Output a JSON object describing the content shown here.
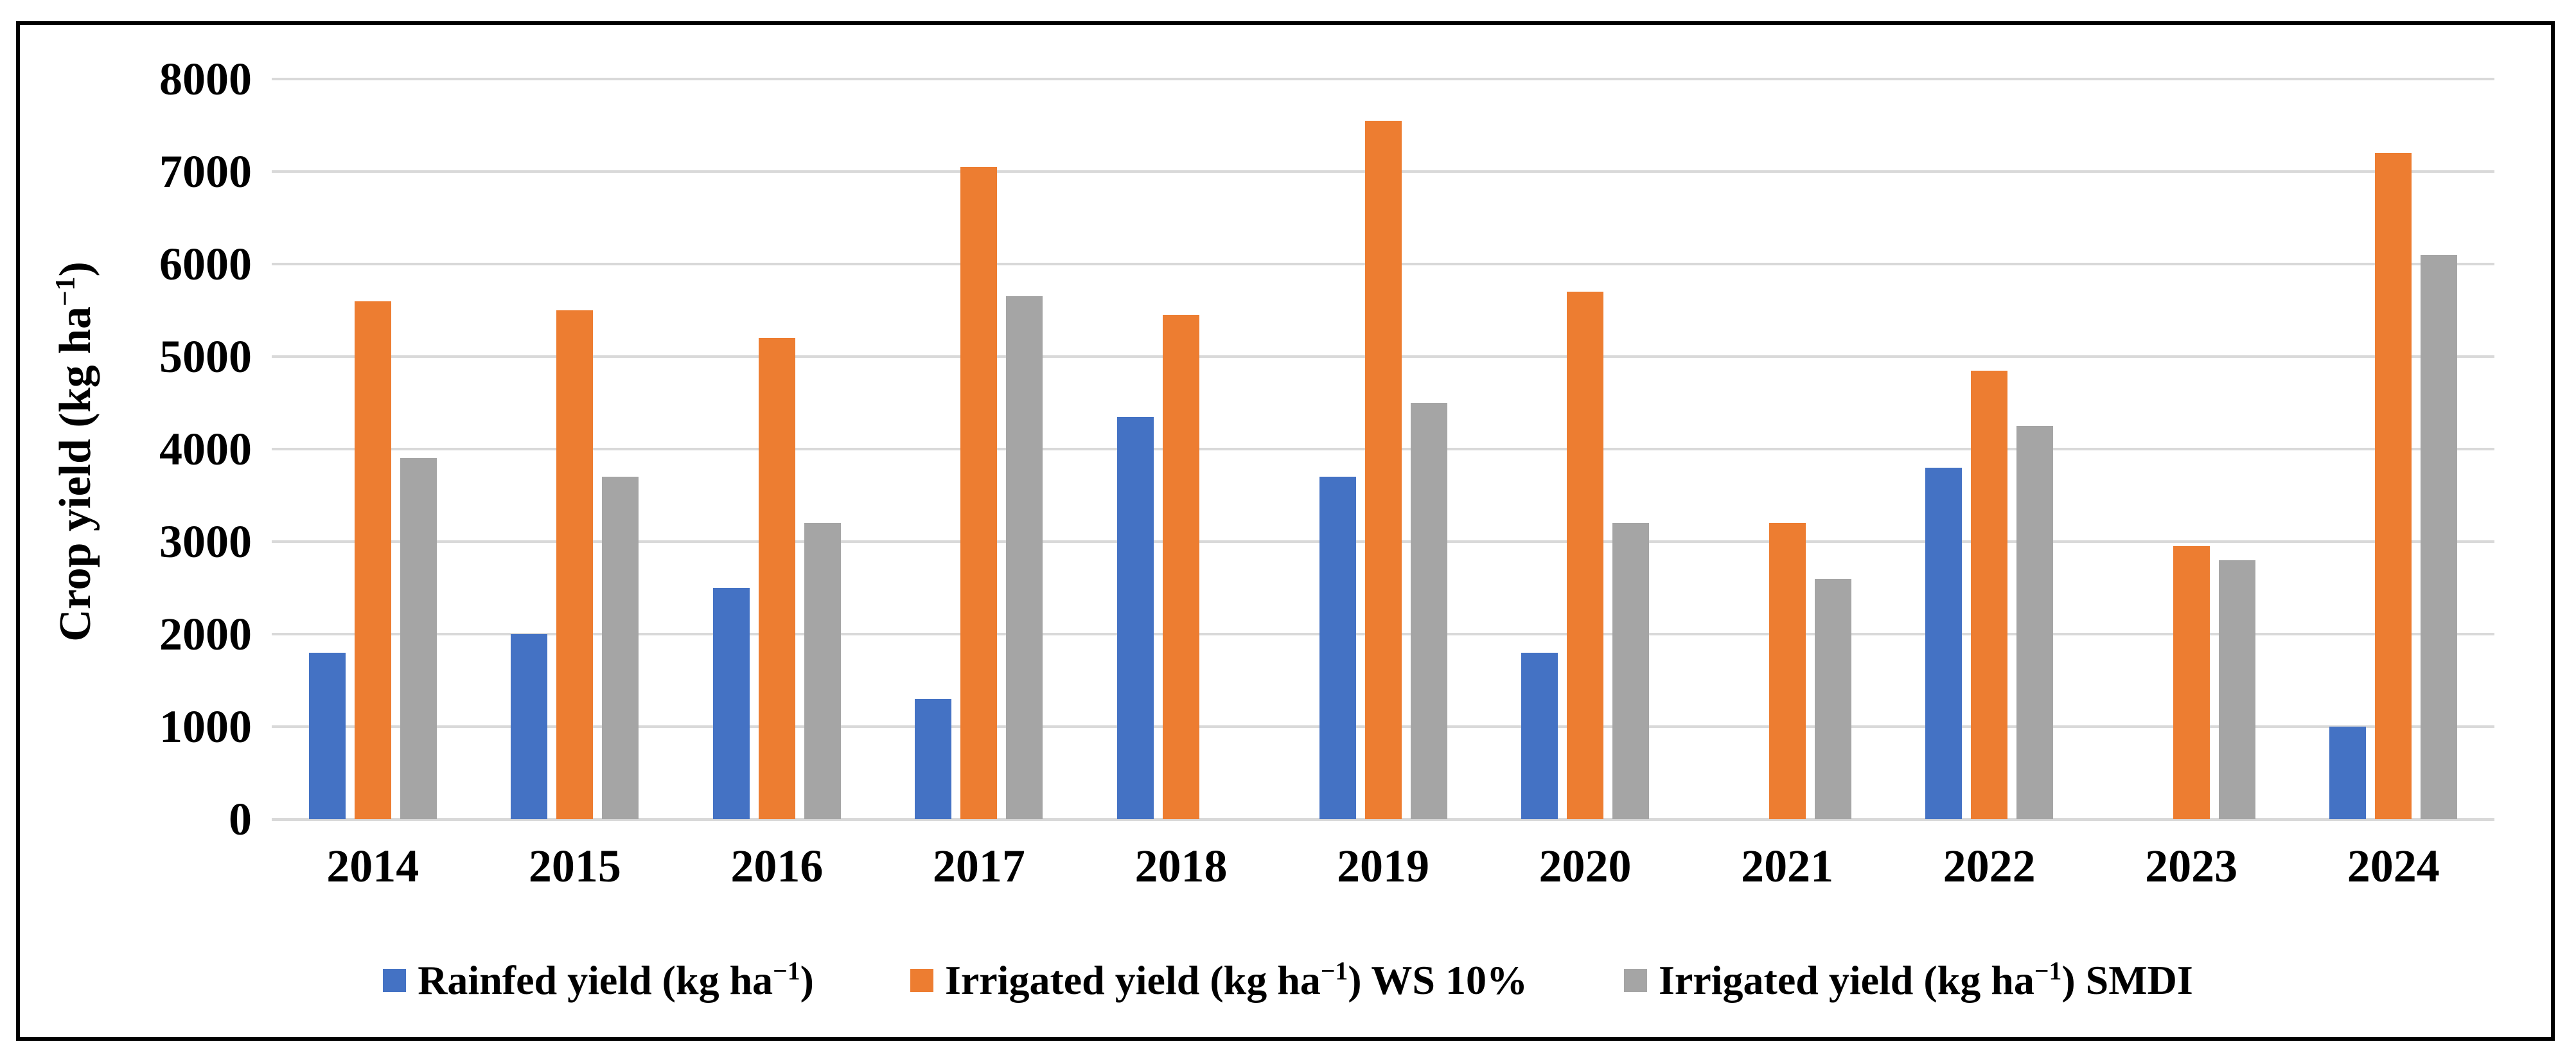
{
  "chart_data": {
    "type": "bar",
    "title": "",
    "categories": [
      "2014",
      "2015",
      "2016",
      "2017",
      "2018",
      "2019",
      "2020",
      "2021",
      "2022",
      "2023",
      "2024"
    ],
    "series": [
      {
        "name": "Rainfed yield (kg ha⁻¹)",
        "color": "#4472C4",
        "values": [
          1800,
          2000,
          2500,
          1300,
          4350,
          3700,
          1800,
          null,
          3800,
          null,
          1000
        ]
      },
      {
        "name": "Irrigated yield (kg ha⁻¹) WS 10%",
        "color": "#ED7D31",
        "values": [
          5600,
          5500,
          5200,
          7050,
          5450,
          7550,
          5700,
          3200,
          4850,
          2950,
          7200
        ]
      },
      {
        "name": "Irrigated yield (kg ha⁻¹) SMDI",
        "color": "#A5A5A5",
        "values": [
          3900,
          3700,
          3200,
          5650,
          null,
          4500,
          3200,
          2600,
          4250,
          2800,
          6100
        ]
      }
    ],
    "xlabel": "",
    "ylabel": "Crop yield (kg ha⁻¹)",
    "ylim": [
      0,
      8000
    ],
    "ytick_step": 1000,
    "ytick_labels": [
      "0",
      "1000",
      "2000",
      "3000",
      "4000",
      "5000",
      "6000",
      "7000",
      "8000"
    ],
    "grid": "horizontal-only",
    "gridline_color": "#D9D9D9",
    "legend_position": "bottom"
  }
}
